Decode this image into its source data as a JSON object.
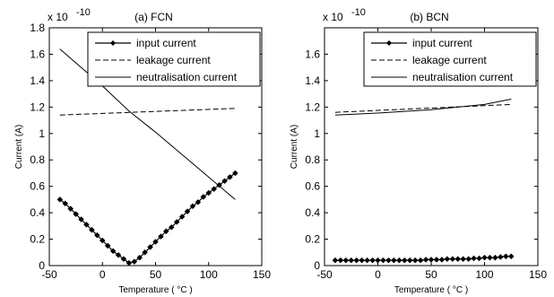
{
  "chart_data": [
    {
      "type": "line",
      "title": "(a) FCN",
      "xlabel": "Temperature ( °C )",
      "ylabel": "Current (A)",
      "y_multiplier": "x 10",
      "y_exponent": "-10",
      "xlim": [
        -50,
        150
      ],
      "ylim": [
        0,
        1.8
      ],
      "xticks": [
        -50,
        0,
        50,
        100,
        150
      ],
      "yticks": [
        0,
        0.2,
        0.4,
        0.6,
        0.8,
        1,
        1.2,
        1.4,
        1.6,
        1.8
      ],
      "ytick_labels": [
        "0",
        "0.2",
        "0.4",
        "0.6",
        "0.8",
        "1",
        "1.2",
        "1.4",
        "1.6",
        "1.8"
      ],
      "grid": false,
      "legend_position": "top-right",
      "series": [
        {
          "name": "input current",
          "style": "diamond-markers",
          "x": [
            -40,
            -35,
            -30,
            -25,
            -20,
            -15,
            -10,
            -5,
            0,
            5,
            10,
            15,
            20,
            25,
            30,
            35,
            40,
            45,
            50,
            55,
            60,
            65,
            70,
            75,
            80,
            85,
            90,
            95,
            100,
            105,
            110,
            115,
            120,
            125
          ],
          "y": [
            0.5,
            0.47,
            0.43,
            0.39,
            0.35,
            0.31,
            0.27,
            0.23,
            0.19,
            0.15,
            0.11,
            0.08,
            0.05,
            0.02,
            0.03,
            0.06,
            0.1,
            0.14,
            0.18,
            0.22,
            0.26,
            0.29,
            0.33,
            0.37,
            0.41,
            0.45,
            0.48,
            0.52,
            0.55,
            0.58,
            0.61,
            0.64,
            0.67,
            0.7
          ]
        },
        {
          "name": "leakage current",
          "style": "dashed",
          "x": [
            -40,
            125
          ],
          "y": [
            1.14,
            1.19
          ]
        },
        {
          "name": "neutralisation current",
          "style": "solid",
          "x": [
            -40,
            0,
            25,
            50,
            100,
            125
          ],
          "y": [
            1.64,
            1.36,
            1.17,
            1.01,
            0.67,
            0.5
          ]
        }
      ]
    },
    {
      "type": "line",
      "title": "(b) BCN",
      "xlabel": "Temperature ( °C )",
      "ylabel": "Current (A)",
      "y_multiplier": "x 10",
      "y_exponent": "-10",
      "xlim": [
        -50,
        150
      ],
      "ylim": [
        0,
        1.8
      ],
      "xticks": [
        -50,
        0,
        50,
        100,
        150
      ],
      "yticks": [
        0,
        0.2,
        0.4,
        0.6,
        0.8,
        1,
        1.2,
        1.4,
        1.6
      ],
      "ytick_labels": [
        "0",
        "0.2",
        "0.4",
        "0.6",
        "0.8",
        "1",
        "1.2",
        "1.4",
        "1.6"
      ],
      "grid": false,
      "legend_position": "top-right",
      "series": [
        {
          "name": "input current",
          "style": "diamond-markers",
          "x": [
            -40,
            -35,
            -30,
            -25,
            -20,
            -15,
            -10,
            -5,
            0,
            5,
            10,
            15,
            20,
            25,
            30,
            35,
            40,
            45,
            50,
            55,
            60,
            65,
            70,
            75,
            80,
            85,
            90,
            95,
            100,
            105,
            110,
            115,
            120,
            125
          ],
          "y": [
            0.04,
            0.04,
            0.04,
            0.04,
            0.04,
            0.04,
            0.04,
            0.04,
            0.04,
            0.04,
            0.04,
            0.04,
            0.04,
            0.04,
            0.04,
            0.04,
            0.04,
            0.045,
            0.045,
            0.045,
            0.045,
            0.05,
            0.05,
            0.05,
            0.05,
            0.05,
            0.055,
            0.055,
            0.06,
            0.06,
            0.06,
            0.065,
            0.07,
            0.07
          ]
        },
        {
          "name": "leakage current",
          "style": "dashed",
          "x": [
            -40,
            125
          ],
          "y": [
            1.16,
            1.22
          ]
        },
        {
          "name": "neutralisation current",
          "style": "solid",
          "x": [
            -40,
            0,
            50,
            100,
            125
          ],
          "y": [
            1.14,
            1.155,
            1.18,
            1.22,
            1.26
          ]
        }
      ]
    }
  ]
}
